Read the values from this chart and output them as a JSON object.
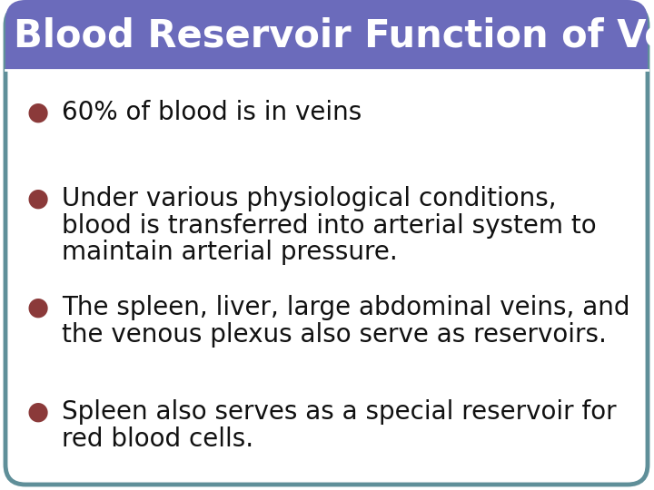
{
  "title": "Blood Reservoir Function of Veins",
  "title_bg_color": "#6B6BBB",
  "title_text_color": "#ffffff",
  "body_bg_color": "#ffffff",
  "border_color": "#5F8F99",
  "bullet_color": "#8B3A3A",
  "text_color": "#111111",
  "bullets": [
    "60% of blood is in veins",
    "Under various physiological conditions,\nblood is transferred into arterial system to\nmaintain arterial pressure.",
    "The spleen, liver, large abdominal veins, and\nthe venous plexus also serve as reservoirs.",
    "Spleen also serves as a special reservoir for\nred blood cells."
  ],
  "title_fontsize": 30,
  "bullet_fontsize": 20,
  "fig_width": 7.2,
  "fig_height": 5.4,
  "dpi": 100
}
